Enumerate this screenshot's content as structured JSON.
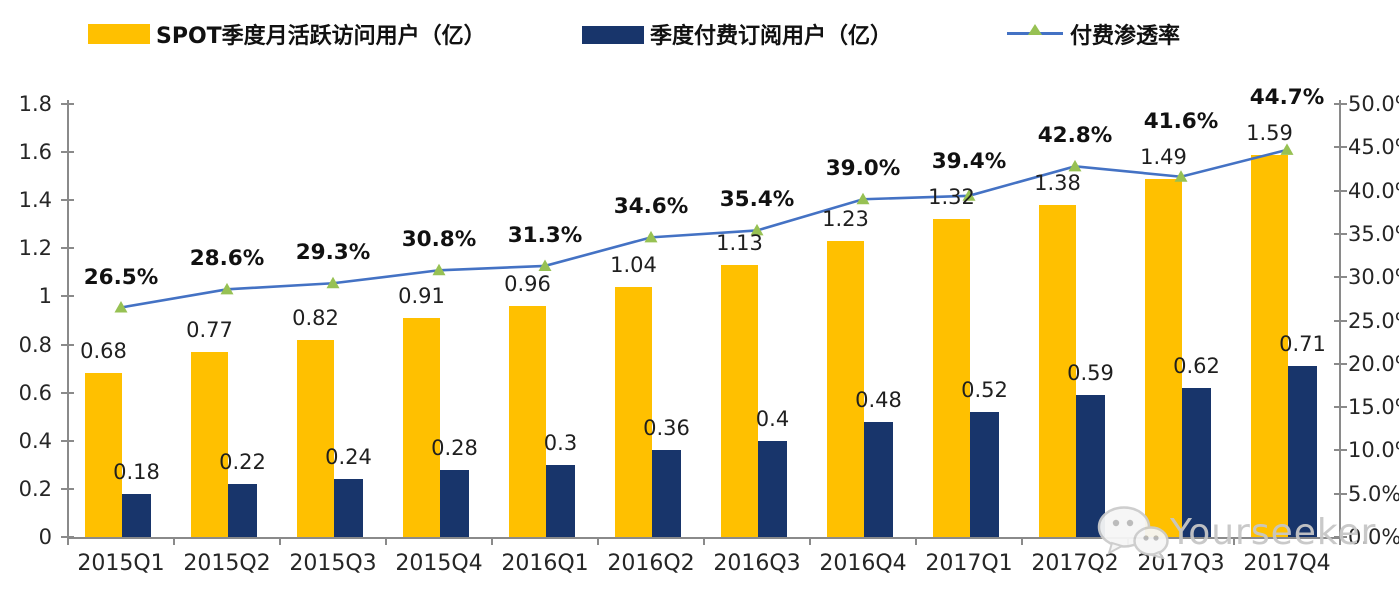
{
  "legend": {
    "items": [
      {
        "label": "SPOT季度月活跃访问用户（亿）",
        "color": "#FFC000",
        "type": "bar"
      },
      {
        "label": "季度付费订阅用户（亿）",
        "color": "#18356B",
        "type": "bar"
      },
      {
        "label": "付费渗透率",
        "color": "#4472C4",
        "marker_color": "#97C153",
        "type": "line"
      }
    ]
  },
  "watermark": {
    "text": "Yourseeker",
    "icon": "wechat-icon"
  },
  "chart_data": {
    "type": "bar+line combo",
    "categories": [
      "2015Q1",
      "2015Q2",
      "2015Q3",
      "2015Q4",
      "2016Q1",
      "2016Q2",
      "2016Q3",
      "2016Q4",
      "2017Q1",
      "2017Q2",
      "2017Q3",
      "2017Q4"
    ],
    "series": [
      {
        "name": "SPOT季度月活跃访问用户（亿）",
        "type": "bar",
        "axis": "left",
        "color": "#FFC000",
        "values": [
          0.68,
          0.77,
          0.82,
          0.91,
          0.96,
          1.04,
          1.13,
          1.23,
          1.32,
          1.38,
          1.49,
          1.59
        ],
        "labels": [
          "0.68",
          "0.77",
          "0.82",
          "0.91",
          "0.96",
          "1.04",
          "1.13",
          "1.23",
          "1.32",
          "1.38",
          "1.49",
          "1.59"
        ]
      },
      {
        "name": "季度付费订阅用户（亿）",
        "type": "bar",
        "axis": "left",
        "color": "#18356B",
        "values": [
          0.18,
          0.22,
          0.24,
          0.28,
          0.3,
          0.36,
          0.4,
          0.48,
          0.52,
          0.59,
          0.62,
          0.71
        ],
        "labels": [
          "0.18",
          "0.22",
          "0.24",
          "0.28",
          "0.3",
          "0.36",
          "0.4",
          "0.48",
          "0.52",
          "0.59",
          "0.62",
          "0.71"
        ]
      },
      {
        "name": "付费渗透率",
        "type": "line",
        "axis": "right",
        "color": "#4472C4",
        "marker": "triangle",
        "marker_color": "#97C153",
        "values": [
          26.5,
          28.6,
          29.3,
          30.8,
          31.3,
          34.6,
          35.4,
          39.0,
          39.4,
          42.8,
          41.6,
          44.7
        ],
        "labels": [
          "26.5%",
          "28.6%",
          "29.3%",
          "30.8%",
          "31.3%",
          "34.6%",
          "35.4%",
          "39.0%",
          "39.4%",
          "42.8%",
          "41.6%",
          "44.7%"
        ]
      }
    ],
    "left_axis": {
      "min": 0,
      "max": 1.8,
      "ticks": [
        "1.8",
        "1.6",
        "1.4",
        "1.2",
        "1",
        "0.8",
        "0.6",
        "0.4",
        "0.2",
        "0"
      ]
    },
    "right_axis": {
      "min": 0,
      "max": 50,
      "ticks": [
        "50.0%",
        "45.0%",
        "40.0%",
        "35.0%",
        "30.0%",
        "25.0%",
        "20.0%",
        "15.0%",
        "10.0%",
        "5.0%",
        "0.0%"
      ]
    },
    "grid": false,
    "legend_position": "top",
    "title": ""
  }
}
